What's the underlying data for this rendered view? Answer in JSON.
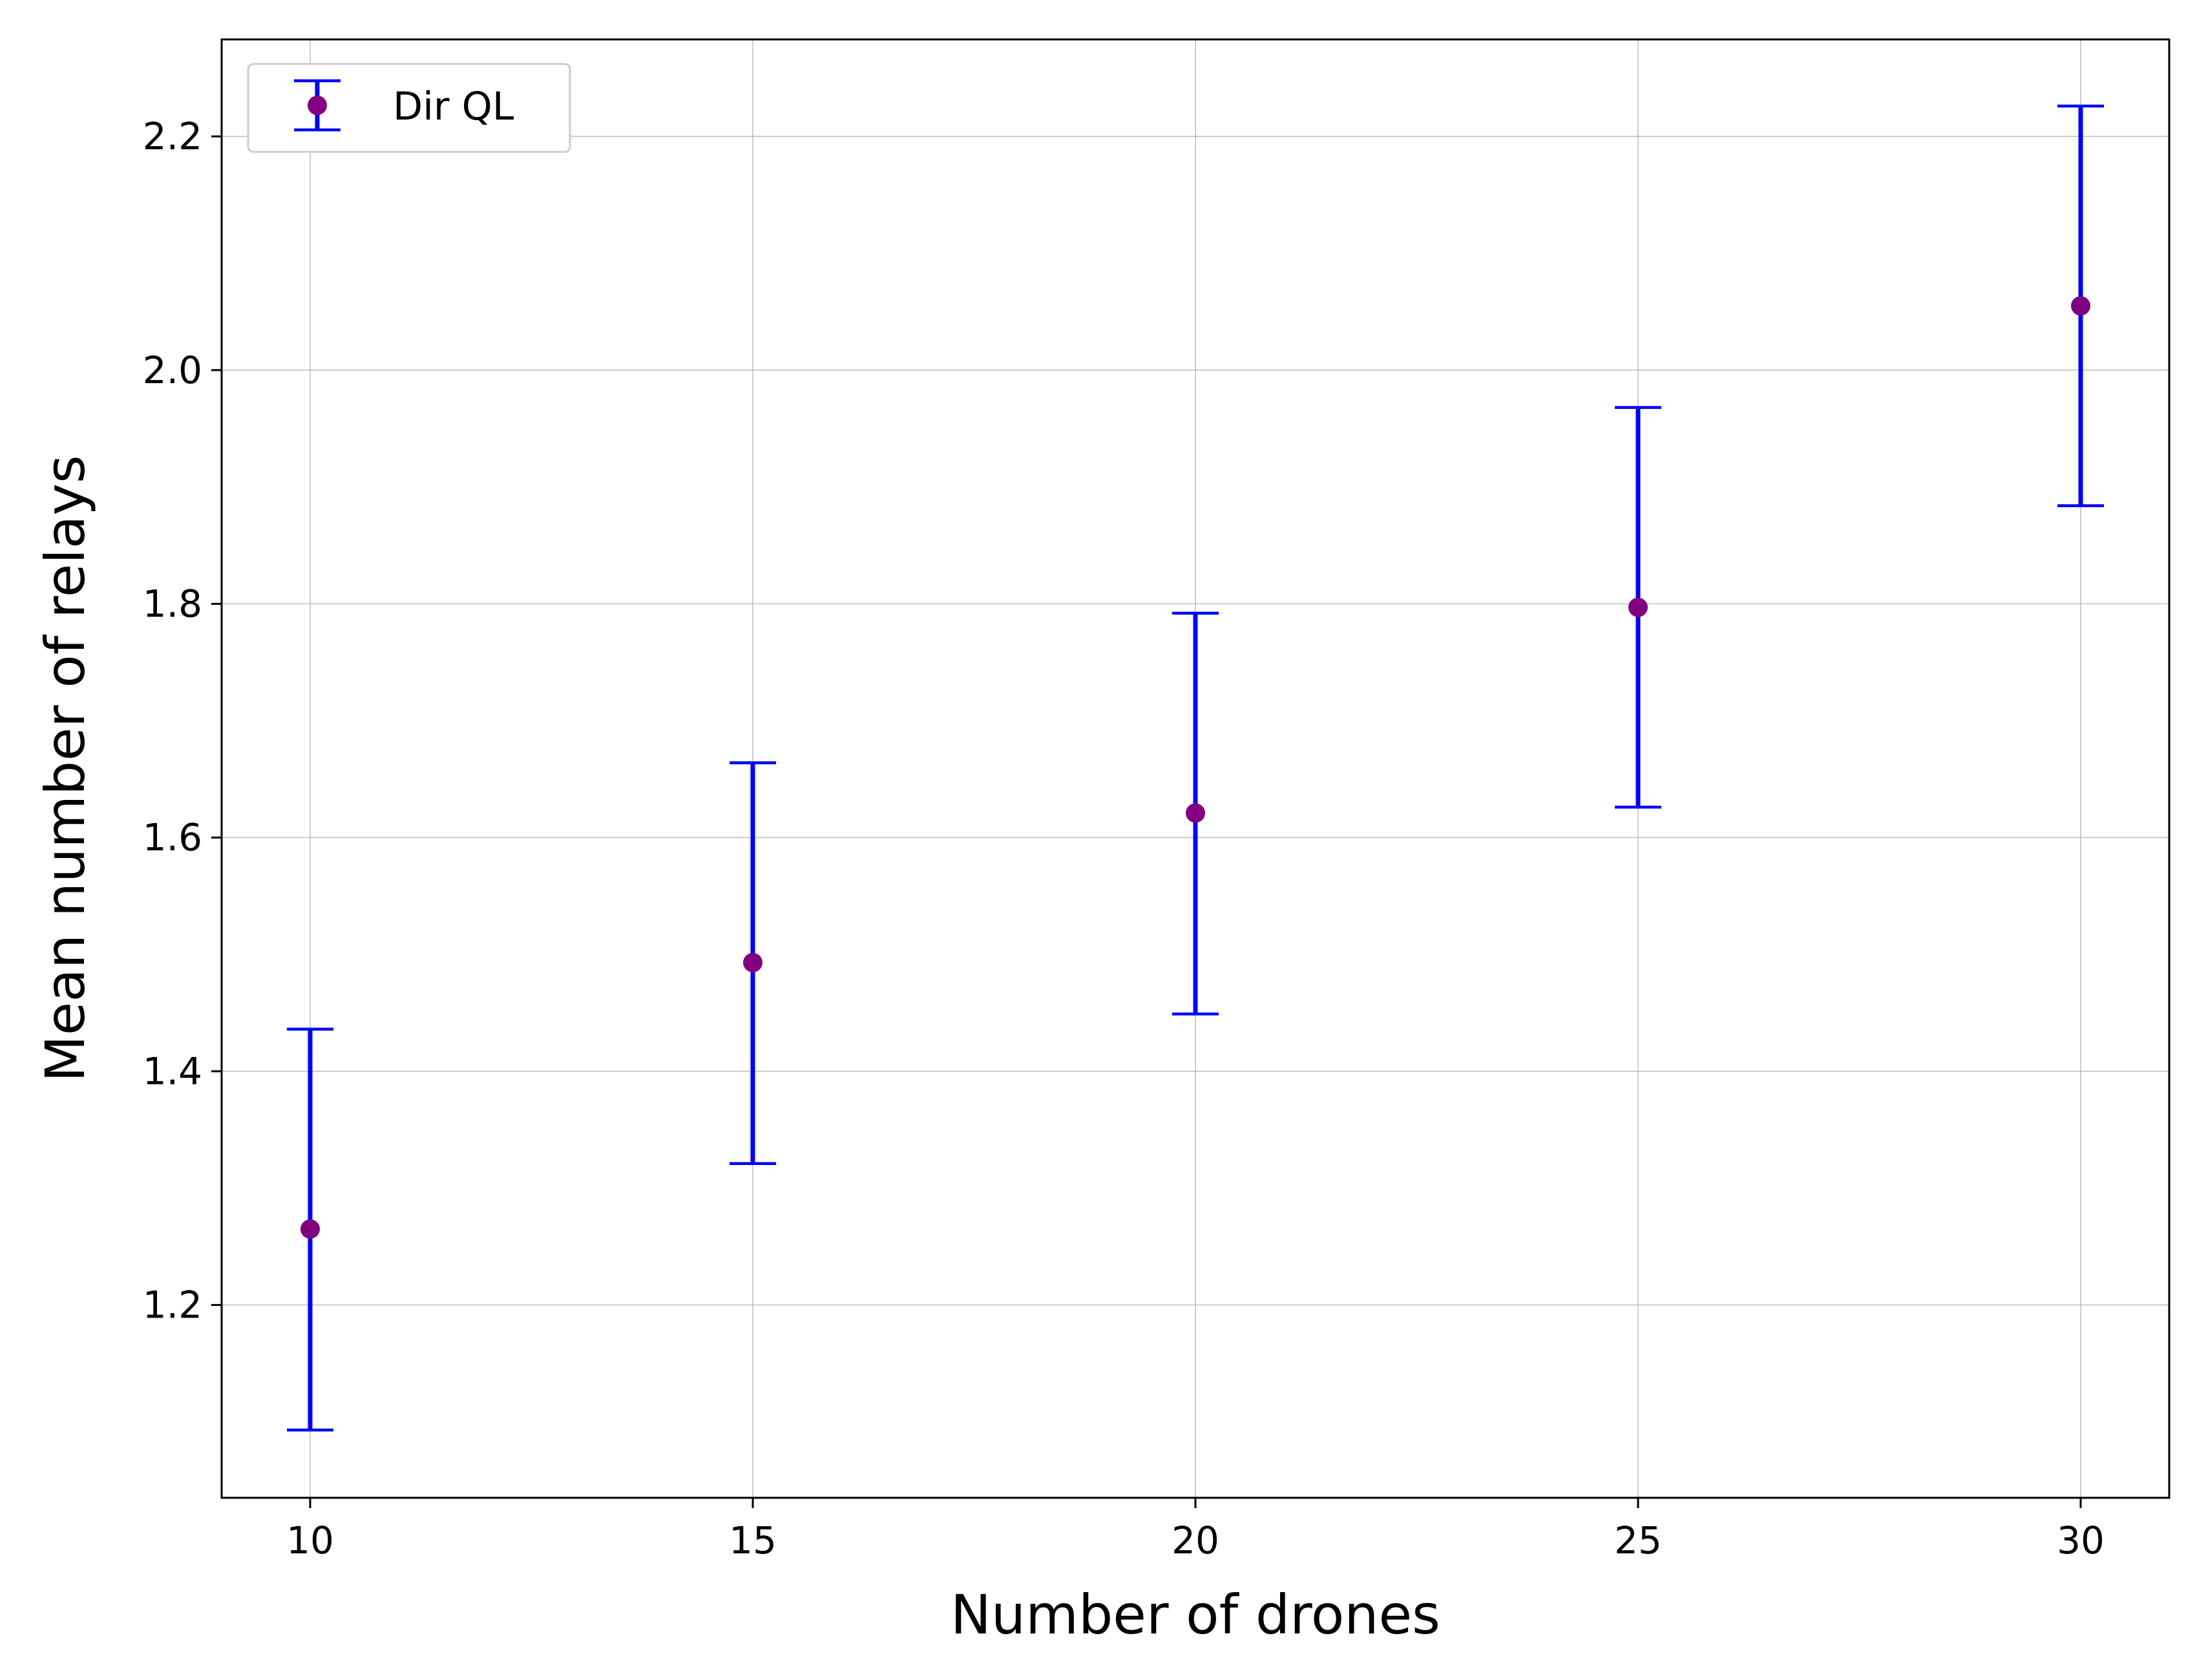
{
  "chart_data": {
    "type": "scatter",
    "title": "",
    "xlabel": "Number of drones",
    "ylabel": "Mean number of relays",
    "xlim": [
      9,
      31
    ],
    "ylim": [
      1.035,
      2.283
    ],
    "xticks": [
      10,
      15,
      20,
      25,
      30
    ],
    "yticks": [
      1.2,
      1.4,
      1.6,
      1.8,
      2.0,
      2.2
    ],
    "ytick_labels": [
      "1.2",
      "1.4",
      "1.6",
      "1.8",
      "2.0",
      "2.2"
    ],
    "grid": true,
    "legend": {
      "position": "top-left"
    },
    "series": [
      {
        "name": "Dir QL",
        "marker_color": "#800080",
        "errorbar_color": "#0000ff",
        "x": [
          10,
          15,
          20,
          25,
          30
        ],
        "y": [
          1.265,
          1.493,
          1.621,
          1.797,
          2.055
        ],
        "yerr_low": [
          1.093,
          1.321,
          1.449,
          1.626,
          1.884
        ],
        "yerr_high": [
          1.436,
          1.664,
          1.792,
          1.968,
          2.226
        ]
      }
    ]
  }
}
